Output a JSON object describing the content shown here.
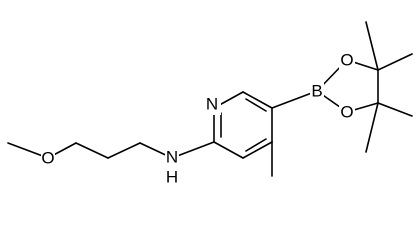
{
  "labels": [
    "O",
    "N",
    "H",
    "N",
    "B",
    "O",
    "O"
  ]
}
